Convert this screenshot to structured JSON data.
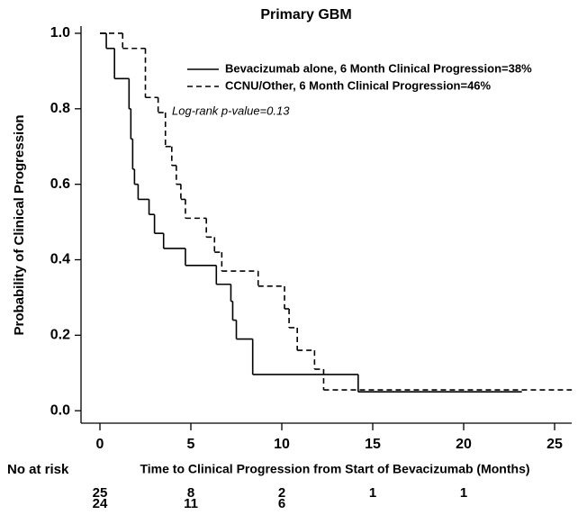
{
  "chart_data": {
    "type": "step",
    "title": "Primary GBM",
    "x_label": "Time to Clinical Progression from Start of Bevacizumab (Months)",
    "y_label": "Probability of Clinical Progression",
    "annotation": "Log-rank p-value=0.13",
    "xlim": [
      -1.04,
      25.94
    ],
    "xticks": [
      0,
      5,
      10,
      15,
      20,
      25
    ],
    "ylim": [
      -0.033,
      1.02
    ],
    "yticks": [
      {
        "value": 0,
        "label": "0.0"
      },
      0.2,
      0.4,
      0.6,
      0.8,
      {
        "value": 1,
        "label": "1.0"
      }
    ],
    "series": [
      {
        "name": "Bevacizumab alone, 6 Month Clinical Progression=38%",
        "color": "#000000",
        "line_style": "solid",
        "x": [
          0,
          0.35,
          0.8,
          1.6,
          1.7,
          1.8,
          1.9,
          2.1,
          2.7,
          3.0,
          3.5,
          4.7,
          6.4,
          7.2,
          7.3,
          7.5,
          8.4,
          14.2,
          23.2
        ],
        "values": [
          1.0,
          0.96,
          0.88,
          0.8,
          0.72,
          0.64,
          0.6,
          0.56,
          0.52,
          0.47,
          0.43,
          0.385,
          0.335,
          0.29,
          0.24,
          0.19,
          0.096,
          0.05,
          0.05
        ]
      },
      {
        "name": "CCNU/Other, 6 Month Clinical Progression=46%",
        "color": "#000000",
        "line_style": "dashed",
        "x": [
          0,
          1.25,
          2.5,
          3.2,
          3.6,
          3.95,
          4.2,
          4.45,
          4.7,
          5.85,
          6.3,
          6.7,
          8.7,
          10.15,
          10.4,
          10.85,
          11.8,
          12.3,
          25.94
        ],
        "values": [
          1.0,
          0.96,
          0.83,
          0.79,
          0.7,
          0.65,
          0.6,
          0.56,
          0.51,
          0.46,
          0.42,
          0.37,
          0.33,
          0.27,
          0.22,
          0.16,
          0.11,
          0.055,
          0.055
        ]
      }
    ],
    "at_risk": {
      "label": "No at risk",
      "x": [
        0,
        5,
        10,
        15,
        20
      ],
      "rows": [
        [
          25,
          8,
          2,
          1,
          1
        ],
        [
          24,
          11,
          6
        ]
      ]
    }
  }
}
